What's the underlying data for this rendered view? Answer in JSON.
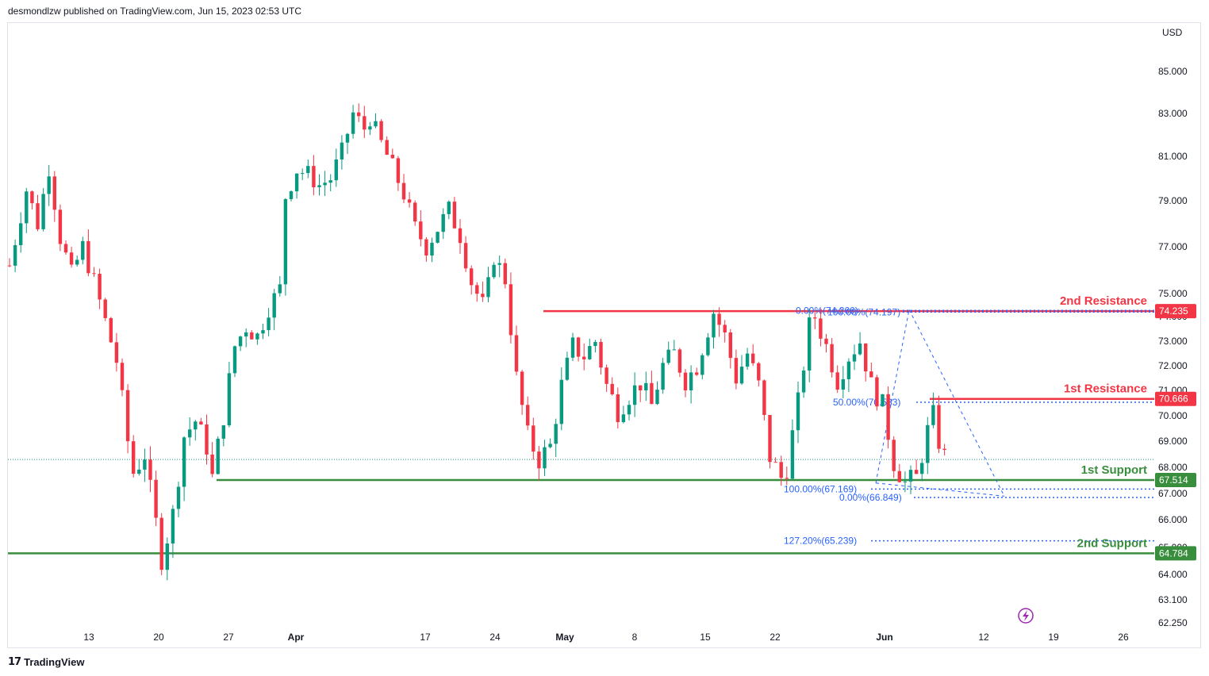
{
  "header": {
    "text": "desmondlzw published on TradingView.com, Jun 15, 2023 02:53 UTC"
  },
  "footer": {
    "logo_mark": "𝟭𝟳",
    "brand": "TradingView"
  },
  "colors": {
    "up": "#089981",
    "down": "#f23645",
    "resistance": "#f23645",
    "support": "#388e3c",
    "fib": "#2962ff",
    "last_price_line": "#089981",
    "flash_icon": "#9c27b0"
  },
  "icons": {
    "flash": "lightning-icon",
    "logo": "tradingview-logo-icon"
  },
  "chart_data": {
    "type": "candlestick",
    "symbol_currency": "USD",
    "price_ticks": [
      "85.000",
      "83.000",
      "81.000",
      "79.000",
      "77.000",
      "75.000",
      "74.000",
      "73.000",
      "72.000",
      "71.000",
      "70.000",
      "69.000",
      "68.000",
      "67.000",
      "66.000",
      "65.000",
      "64.000",
      "63.100",
      "62.250"
    ],
    "date_ticks": [
      {
        "label": "13",
        "bold": false
      },
      {
        "label": "20",
        "bold": false
      },
      {
        "label": "27",
        "bold": false
      },
      {
        "label": "Apr",
        "bold": true
      },
      {
        "label": "17",
        "bold": false
      },
      {
        "label": "24",
        "bold": false
      },
      {
        "label": "May",
        "bold": true
      },
      {
        "label": "8",
        "bold": false
      },
      {
        "label": "15",
        "bold": false
      },
      {
        "label": "22",
        "bold": false
      },
      {
        "label": "Jun",
        "bold": true
      },
      {
        "label": "12",
        "bold": false
      },
      {
        "label": "19",
        "bold": false
      },
      {
        "label": "26",
        "bold": false
      }
    ],
    "levels": [
      {
        "name": "2nd Resistance",
        "price": 74.235,
        "badge": "74.235",
        "kind": "resistance"
      },
      {
        "name": "1st Resistance",
        "price": 70.666,
        "badge": "70.666",
        "kind": "resistance"
      },
      {
        "name": "1st Support",
        "price": 67.514,
        "badge": "67.514",
        "kind": "support"
      },
      {
        "name": "2nd Support",
        "price": 64.784,
        "badge": "64.784",
        "kind": "support"
      }
    ],
    "fib_labels": [
      {
        "text": "0.00%(74.266)",
        "price": 74.266
      },
      {
        "text": "100.00%(74.197)",
        "price": 74.197
      },
      {
        "text": "50.00%(70.533)",
        "price": 70.533
      },
      {
        "text": "100.00%(67.169)",
        "price": 67.169
      },
      {
        "text": "0.00%(66.849)",
        "price": 66.849
      },
      {
        "text": "127.20%(65.239)",
        "price": 65.239
      }
    ],
    "last_price": 68.3,
    "price_path": [
      [
        0,
        76.2
      ],
      [
        3,
        79.5
      ],
      [
        5,
        78.0
      ],
      [
        7,
        80.5
      ],
      [
        9,
        77.4
      ],
      [
        11,
        75.8
      ],
      [
        13,
        77.0
      ],
      [
        15,
        75.5
      ],
      [
        17,
        73.8
      ],
      [
        19,
        72.2
      ],
      [
        21,
        69.0
      ],
      [
        22,
        67.8
      ],
      [
        24,
        68.5
      ],
      [
        25,
        67.1
      ],
      [
        27,
        64.6
      ],
      [
        29,
        66.2
      ],
      [
        31,
        69.2
      ],
      [
        33,
        69.8
      ],
      [
        35,
        68.8
      ],
      [
        36,
        67.6
      ],
      [
        38,
        70.0
      ],
      [
        40,
        72.8
      ],
      [
        42,
        73.6
      ],
      [
        44,
        73.2
      ],
      [
        46,
        74.4
      ],
      [
        48,
        75.2
      ],
      [
        49,
        79.2
      ],
      [
        51,
        80.4
      ],
      [
        53,
        80.2
      ],
      [
        55,
        79.7
      ],
      [
        57,
        80.0
      ],
      [
        59,
        81.2
      ],
      [
        61,
        83.0
      ],
      [
        63,
        82.3
      ],
      [
        64,
        82.8
      ],
      [
        66,
        81.6
      ],
      [
        68,
        80.5
      ],
      [
        70,
        79.3
      ],
      [
        72,
        77.8
      ],
      [
        74,
        77.0
      ],
      [
        76,
        77.8
      ],
      [
        78,
        78.6
      ],
      [
        80,
        77.5
      ],
      [
        82,
        75.5
      ],
      [
        84,
        74.5
      ],
      [
        85,
        75.3
      ],
      [
        86,
        76.6
      ],
      [
        88,
        75.6
      ],
      [
        90,
        71.5
      ],
      [
        92,
        69.2
      ],
      [
        94,
        68.3
      ],
      [
        96,
        68.8
      ],
      [
        98,
        71.2
      ],
      [
        100,
        72.8
      ],
      [
        102,
        72.4
      ],
      [
        104,
        73.0
      ],
      [
        106,
        71.2
      ],
      [
        108,
        70.2
      ],
      [
        110,
        70.8
      ],
      [
        112,
        71.3
      ],
      [
        114,
        70.4
      ],
      [
        116,
        72.0
      ],
      [
        118,
        72.5
      ],
      [
        120,
        71.4
      ],
      [
        122,
        72.0
      ],
      [
        124,
        73.5
      ],
      [
        125,
        74.2
      ],
      [
        127,
        73.2
      ],
      [
        129,
        71.5
      ],
      [
        131,
        72.5
      ],
      [
        133,
        71.2
      ],
      [
        135,
        68.4
      ],
      [
        137,
        67.6
      ],
      [
        138,
        68.0
      ],
      [
        140,
        70.5
      ],
      [
        142,
        73.6
      ],
      [
        143,
        74.0
      ],
      [
        145,
        72.8
      ],
      [
        147,
        71.4
      ],
      [
        149,
        72.4
      ],
      [
        151,
        73.0
      ],
      [
        153,
        71.2
      ],
      [
        155,
        70.4
      ],
      [
        157,
        68.2
      ],
      [
        159,
        67.4
      ],
      [
        161,
        67.6
      ],
      [
        163,
        69.4
      ],
      [
        164,
        70.0
      ],
      [
        165,
        69.0
      ],
      [
        166,
        68.4
      ]
    ]
  }
}
